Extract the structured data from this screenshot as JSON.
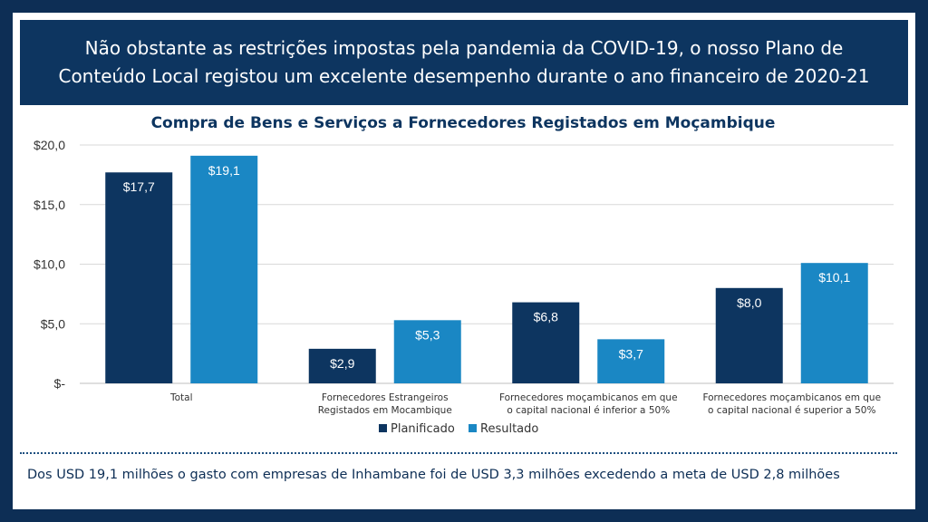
{
  "banner": {
    "text": "Não obstante as restrições impostas pela pandemia da COVID-19, o nosso Plano de Conteúdo Local registou um excelente desempenho durante o ano financeiro de 2020-21"
  },
  "footnote": "Dos USD 19,1 milhões o gasto com empresas de Inhambane foi de USD 3,3 milhões excedendo a meta de USD 2,8 milhões",
  "colors": {
    "planned": "#0d3560",
    "actual": "#1a87c4",
    "title": "#0d3560",
    "banner": "#0d3560"
  },
  "chart_data": {
    "type": "bar",
    "title": "Compra de Bens e Serviços a Fornecedores Registados em Moçambique",
    "categories": [
      [
        "Total"
      ],
      [
        "Fornecedores Estrangeiros",
        "Registados em Mocambique"
      ],
      [
        "Fornecedores moçambicanos em que",
        "o capital nacional é inferior a 50%"
      ],
      [
        "Fornecedores moçambicanos em que",
        "o capital nacional é superior a 50%"
      ]
    ],
    "series": [
      {
        "name": "Planificado",
        "values": [
          17.7,
          2.9,
          6.8,
          8.0
        ],
        "labels": [
          "$17,7",
          "$2,9",
          "$6,8",
          "$8,0"
        ]
      },
      {
        "name": "Resultado",
        "values": [
          19.1,
          5.3,
          3.7,
          10.1
        ],
        "labels": [
          "$19,1",
          "$5,3",
          "$3,7",
          "$10,1"
        ]
      }
    ],
    "ylim": [
      0,
      20
    ],
    "yticks": [
      0,
      5,
      10,
      15,
      20
    ],
    "ytick_labels": [
      "$-",
      "$5,0",
      "$10,0",
      "$15,0",
      "$20,0"
    ],
    "grid": true,
    "legend_position": "bottom"
  }
}
